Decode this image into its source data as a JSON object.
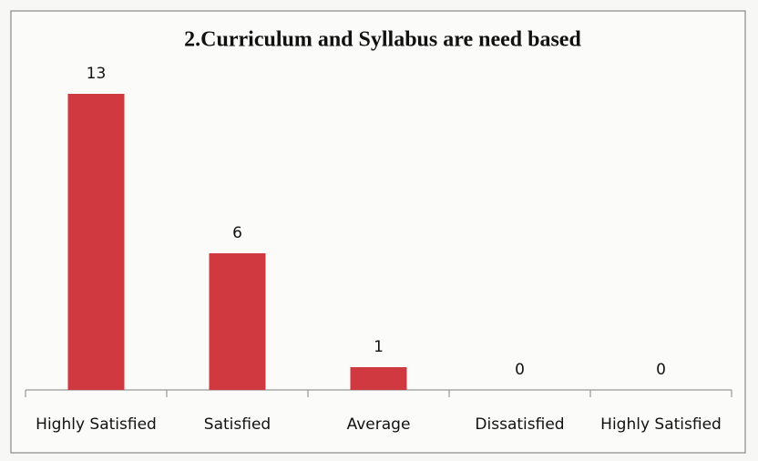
{
  "chart_data": {
    "type": "bar",
    "title": "2.Curriculum and Syllabus are need based",
    "categories": [
      "Highly Satisfied",
      "Satisfied",
      "Average",
      "Dissatisfied",
      "Highly Satisfied"
    ],
    "values": [
      13,
      6,
      1,
      0,
      0
    ],
    "color": "#d0393f"
  }
}
